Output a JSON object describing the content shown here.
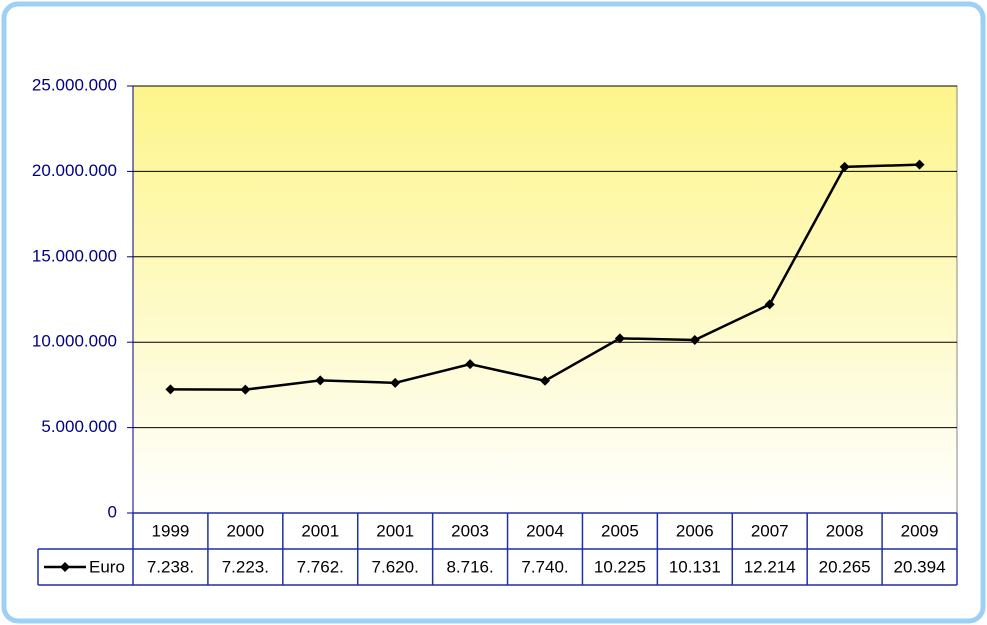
{
  "chart_data": {
    "type": "line",
    "categories": [
      "1999",
      "2000",
      "2001",
      "2001",
      "2003",
      "2004",
      "2005",
      "2006",
      "2007",
      "2008",
      "2009"
    ],
    "series": [
      {
        "name": "Euro",
        "color": "#000000",
        "values": [
          7238000,
          7223000,
          7762000,
          7620000,
          8716000,
          7740000,
          10225000,
          10131000,
          12214000,
          20265000,
          20394000
        ],
        "value_labels": [
          "7.238.",
          "7.223.",
          "7.762.",
          "7.620.",
          "8.716.",
          "7.740.",
          "10.225",
          "10.131",
          "12.214",
          "20.265",
          "20.394"
        ]
      }
    ],
    "ylim": [
      0,
      25000000
    ],
    "yticks": [
      0,
      {
        "value": 5000000,
        "label": "5.000.000"
      },
      {
        "value": 10000000,
        "label": "10.000.000"
      },
      {
        "value": 15000000,
        "label": "15.000.000"
      },
      {
        "value": 20000000,
        "label": "20.000.000"
      },
      {
        "value": 25000000,
        "label": "25.000.000"
      }
    ],
    "grid": true
  }
}
